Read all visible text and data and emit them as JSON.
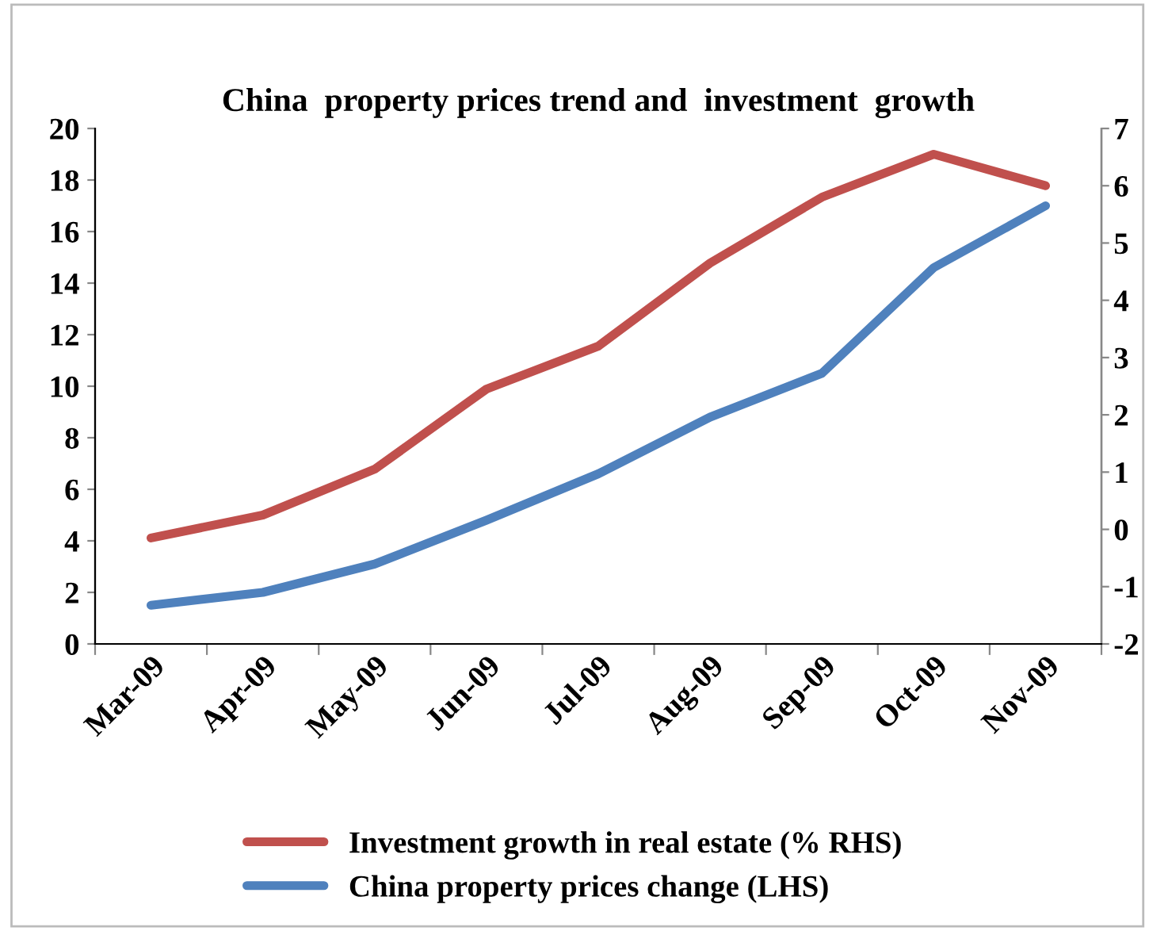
{
  "chart_data": {
    "type": "line",
    "title": "China  property prices trend and  investment  growth",
    "categories": [
      "Mar-09",
      "Apr-09",
      "May-09",
      "Jun-09",
      "Jul-09",
      "Aug-09",
      "Sep-09",
      "Oct-09",
      "Nov-09"
    ],
    "series": [
      {
        "name": "Investment growth in real estate (% RHS)",
        "color": "#c0504d",
        "axis": "y2",
        "values": [
          -0.15,
          0.25,
          1.05,
          2.45,
          3.2,
          4.65,
          5.8,
          6.55,
          6.0
        ]
      },
      {
        "name": "China property prices change (LHS)",
        "color": "#4f81bd",
        "values": [
          1.5,
          2.0,
          3.1,
          4.8,
          6.6,
          8.8,
          10.5,
          14.6,
          17.0
        ]
      }
    ],
    "ylim": [
      0,
      20
    ],
    "yticks": [
      0,
      2,
      4,
      6,
      8,
      10,
      12,
      14,
      16,
      18,
      20
    ],
    "y2lim": [
      -2,
      7
    ],
    "y2ticks": [
      -2,
      -1,
      0,
      1,
      2,
      3,
      4,
      5,
      6,
      7
    ],
    "grid": false,
    "legend": "bottom",
    "marker": "none",
    "line_style": "solid"
  }
}
